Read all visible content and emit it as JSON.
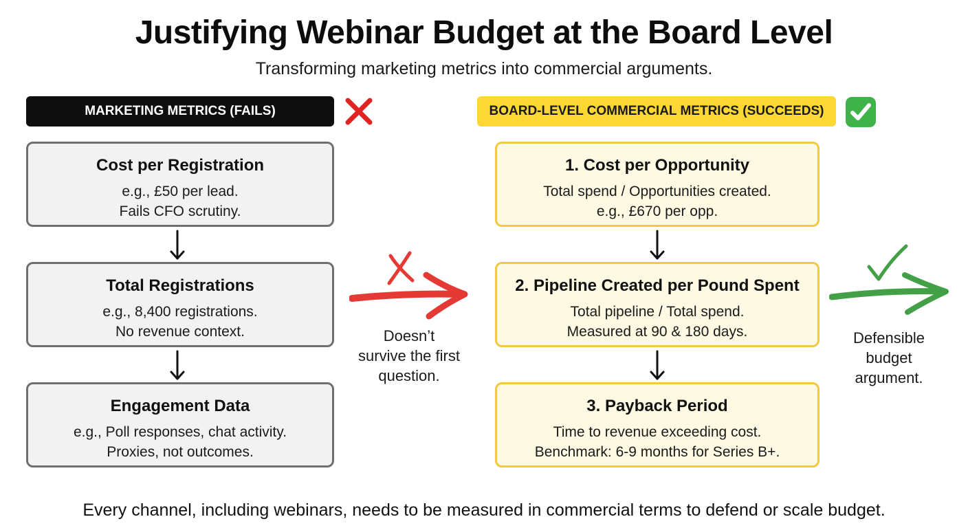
{
  "title": "Justifying Webinar Budget at the Board Level",
  "subtitle": "Transforming marketing metrics into commercial arguments.",
  "left_column": {
    "header": "MARKETING METRICS (FAILS)",
    "status_icon": "red-cross-icon",
    "boxes": [
      {
        "title": "Cost per Registration",
        "lines": [
          "e.g., £50 per lead.",
          "Fails CFO scrutiny."
        ]
      },
      {
        "title": "Total Registrations",
        "lines": [
          "e.g., 8,400 registrations.",
          "No revenue context."
        ]
      },
      {
        "title": "Engagement Data",
        "lines": [
          "e.g., Poll responses, chat activity.",
          "Proxies, not outcomes."
        ]
      }
    ]
  },
  "middle": {
    "caption_lines": [
      "Doesn’t",
      "survive the first",
      "question."
    ],
    "arrow_color": "#e53935"
  },
  "right_column": {
    "header": "BOARD-LEVEL COMMERCIAL METRICS (SUCCEEDS)",
    "status_icon": "green-check-icon",
    "boxes": [
      {
        "title": "1. Cost per Opportunity",
        "lines": [
          "Total spend / Opportunities created.",
          "e.g., £670 per opp."
        ]
      },
      {
        "title": "2. Pipeline Created per Pound Spent",
        "lines": [
          "Total pipeline / Total spend.",
          "Measured at 90 & 180 days."
        ]
      },
      {
        "title": "3. Payback Period",
        "lines": [
          "Time to revenue exceeding cost.",
          "Benchmark: 6-9 months for Series B+."
        ]
      }
    ]
  },
  "outcome": {
    "caption_lines": [
      "Defensible",
      "budget",
      "argument."
    ],
    "arrow_color": "#43a047"
  },
  "footer": "Every channel, including webinars, needs to be measured in commercial terms to defend or scale budget.",
  "colors": {
    "header_left_bg": "#0e0e0e",
    "header_right_bg": "#fdd835",
    "box_grey_border": "#6f6f6f",
    "box_yellow_border": "#f4c842"
  }
}
